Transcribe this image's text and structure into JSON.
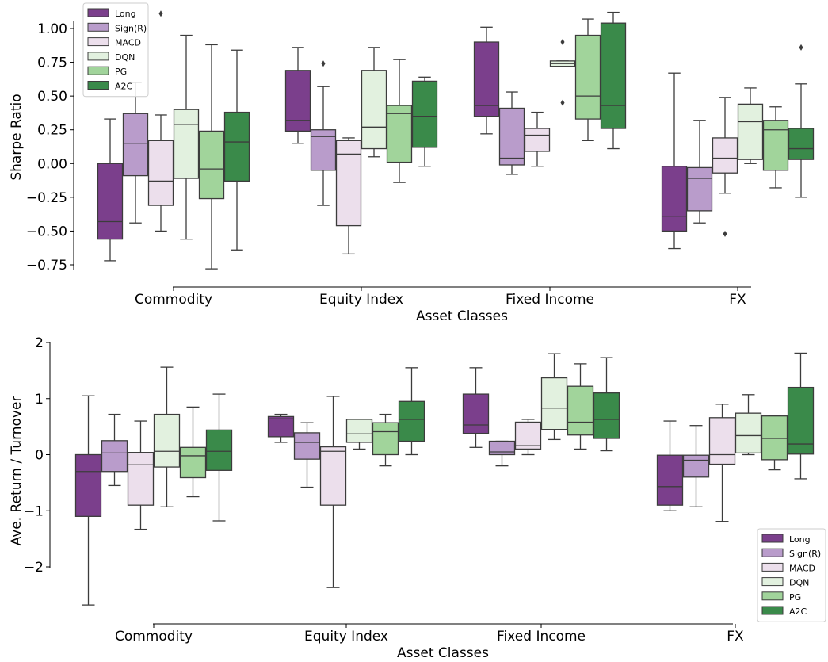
{
  "palette": {
    "Long": "#7b3f8c",
    "Sign(R)": "#b99ccb",
    "MACD": "#ecdfec",
    "DQN": "#e2f1df",
    "PG": "#a1d49b",
    "A2C": "#3a8a4a",
    "line": "#3c3c3c"
  },
  "chart_data": [
    {
      "type": "box",
      "xlabel": "Asset Classes",
      "ylabel": "Sharpe Ratio",
      "categories": [
        "Commodity",
        "Equity Index",
        "Fixed Income",
        "FX"
      ],
      "ylim": [
        -0.82,
        1.18
      ],
      "yticks": [
        -0.75,
        -0.5,
        -0.25,
        0.0,
        0.25,
        0.5,
        0.75,
        1.0
      ],
      "ytick_labels": [
        "−0.75",
        "−0.50",
        "−0.25",
        "0.00",
        "0.25",
        "0.50",
        "0.75",
        "1.00"
      ],
      "legend": [
        "Long",
        "Sign(R)",
        "MACD",
        "DQN",
        "PG",
        "A2C"
      ],
      "legend_position": "top-left",
      "series": [
        {
          "name": "Long",
          "boxes": [
            {
              "lo": -0.72,
              "q1": -0.56,
              "med": -0.43,
              "q3": 0.0,
              "hi": 0.33,
              "outliers": []
            },
            {
              "lo": 0.15,
              "q1": 0.24,
              "med": 0.32,
              "q3": 0.69,
              "hi": 0.86,
              "outliers": []
            },
            {
              "lo": 0.22,
              "q1": 0.35,
              "med": 0.43,
              "q3": 0.9,
              "hi": 1.01,
              "outliers": []
            },
            {
              "lo": -0.63,
              "q1": -0.5,
              "med": -0.39,
              "q3": -0.02,
              "hi": 0.67,
              "outliers": []
            }
          ]
        },
        {
          "name": "Sign(R)",
          "boxes": [
            {
              "lo": -0.44,
              "q1": -0.09,
              "med": 0.15,
              "q3": 0.37,
              "hi": 0.6,
              "outliers": []
            },
            {
              "lo": -0.31,
              "q1": -0.05,
              "med": 0.2,
              "q3": 0.25,
              "hi": 0.57,
              "outliers": [
                0.74
              ]
            },
            {
              "lo": -0.08,
              "q1": -0.01,
              "med": 0.04,
              "q3": 0.41,
              "hi": 0.53,
              "outliers": []
            },
            {
              "lo": -0.44,
              "q1": -0.35,
              "med": -0.11,
              "q3": -0.03,
              "hi": 0.32,
              "outliers": []
            }
          ]
        },
        {
          "name": "MACD",
          "boxes": [
            {
              "lo": -0.5,
              "q1": -0.31,
              "med": -0.13,
              "q3": 0.17,
              "hi": 0.36,
              "outliers": [
                1.11
              ]
            },
            {
              "lo": -0.67,
              "q1": -0.46,
              "med": 0.07,
              "q3": 0.17,
              "hi": 0.19,
              "outliers": []
            },
            {
              "lo": -0.02,
              "q1": 0.09,
              "med": 0.21,
              "q3": 0.26,
              "hi": 0.38,
              "outliers": []
            },
            {
              "lo": -0.22,
              "q1": -0.07,
              "med": 0.04,
              "q3": 0.19,
              "hi": 0.49,
              "outliers": [
                -0.52
              ]
            }
          ]
        },
        {
          "name": "DQN",
          "boxes": [
            {
              "lo": -0.56,
              "q1": -0.11,
              "med": 0.29,
              "q3": 0.4,
              "hi": 0.95,
              "outliers": []
            },
            {
              "lo": 0.05,
              "q1": 0.11,
              "med": 0.27,
              "q3": 0.69,
              "hi": 0.86,
              "outliers": []
            },
            {
              "lo": 0.72,
              "q1": 0.72,
              "med": 0.74,
              "q3": 0.76,
              "hi": 0.76,
              "outliers": [
                0.9,
                0.45
              ]
            },
            {
              "lo": 0.0,
              "q1": 0.03,
              "med": 0.31,
              "q3": 0.44,
              "hi": 0.56,
              "outliers": []
            }
          ]
        },
        {
          "name": "PG",
          "boxes": [
            {
              "lo": -0.78,
              "q1": -0.26,
              "med": -0.04,
              "q3": 0.24,
              "hi": 0.88,
              "outliers": []
            },
            {
              "lo": -0.14,
              "q1": 0.01,
              "med": 0.37,
              "q3": 0.43,
              "hi": 0.77,
              "outliers": []
            },
            {
              "lo": 0.17,
              "q1": 0.33,
              "med": 0.5,
              "q3": 0.95,
              "hi": 1.07,
              "outliers": []
            },
            {
              "lo": -0.18,
              "q1": -0.05,
              "med": 0.25,
              "q3": 0.32,
              "hi": 0.42,
              "outliers": []
            }
          ]
        },
        {
          "name": "A2C",
          "boxes": [
            {
              "lo": -0.64,
              "q1": -0.13,
              "med": 0.16,
              "q3": 0.38,
              "hi": 0.84,
              "outliers": []
            },
            {
              "lo": -0.02,
              "q1": 0.12,
              "med": 0.35,
              "q3": 0.61,
              "hi": 0.64,
              "outliers": []
            },
            {
              "lo": 0.11,
              "q1": 0.26,
              "med": 0.43,
              "q3": 1.04,
              "hi": 1.12,
              "outliers": []
            },
            {
              "lo": -0.25,
              "q1": 0.03,
              "med": 0.11,
              "q3": 0.26,
              "hi": 0.59,
              "outliers": [
                0.86
              ]
            }
          ]
        }
      ]
    },
    {
      "type": "box",
      "xlabel": "Asset Classes",
      "ylabel": "Ave. Return / Turnover",
      "categories": [
        "Commodity",
        "Equity Index",
        "Fixed Income",
        "FX"
      ],
      "ylim": [
        -2.8,
        2.05
      ],
      "yticks": [
        -2,
        -1,
        0,
        1,
        2
      ],
      "ytick_labels": [
        "−2",
        "−1",
        "0",
        "1",
        "2"
      ],
      "legend": [
        "Long",
        "Sign(R)",
        "MACD",
        "DQN",
        "PG",
        "A2C"
      ],
      "legend_position": "bottom-right",
      "series": [
        {
          "name": "Long",
          "boxes": [
            {
              "lo": -2.68,
              "q1": -1.1,
              "med": -0.3,
              "q3": 0.0,
              "hi": 1.05,
              "outliers": []
            },
            {
              "lo": 0.22,
              "q1": 0.32,
              "med": 0.64,
              "q3": 0.68,
              "hi": 0.72,
              "outliers": []
            },
            {
              "lo": 0.13,
              "q1": 0.38,
              "med": 0.53,
              "q3": 1.08,
              "hi": 1.55,
              "outliers": []
            },
            {
              "lo": -1.0,
              "q1": -0.9,
              "med": -0.57,
              "q3": -0.01,
              "hi": 0.6,
              "outliers": []
            }
          ]
        },
        {
          "name": "Sign(R)",
          "boxes": [
            {
              "lo": -0.55,
              "q1": -0.3,
              "med": 0.03,
              "q3": 0.25,
              "hi": 0.72,
              "outliers": []
            },
            {
              "lo": -0.58,
              "q1": -0.08,
              "med": 0.22,
              "q3": 0.39,
              "hi": 0.57,
              "outliers": []
            },
            {
              "lo": -0.2,
              "q1": 0.0,
              "med": 0.05,
              "q3": 0.24,
              "hi": 0.24,
              "outliers": []
            },
            {
              "lo": -0.93,
              "q1": -0.4,
              "med": -0.1,
              "q3": -0.01,
              "hi": 0.52,
              "outliers": []
            }
          ]
        },
        {
          "name": "MACD",
          "boxes": [
            {
              "lo": -1.33,
              "q1": -0.9,
              "med": -0.18,
              "q3": 0.04,
              "hi": 0.6,
              "outliers": []
            },
            {
              "lo": -2.37,
              "q1": -0.9,
              "med": 0.06,
              "q3": 0.14,
              "hi": 1.04,
              "outliers": []
            },
            {
              "lo": 0.0,
              "q1": 0.1,
              "med": 0.16,
              "q3": 0.58,
              "hi": 0.63,
              "outliers": []
            },
            {
              "lo": -1.19,
              "q1": -0.17,
              "med": 0.0,
              "q3": 0.66,
              "hi": 0.9,
              "outliers": []
            }
          ]
        },
        {
          "name": "DQN",
          "boxes": [
            {
              "lo": -0.93,
              "q1": -0.22,
              "med": 0.06,
              "q3": 0.72,
              "hi": 1.56,
              "outliers": []
            },
            {
              "lo": 0.1,
              "q1": 0.22,
              "med": 0.37,
              "q3": 0.63,
              "hi": 0.63,
              "outliers": []
            },
            {
              "lo": 0.27,
              "q1": 0.45,
              "med": 0.83,
              "q3": 1.37,
              "hi": 1.8,
              "outliers": []
            },
            {
              "lo": 0.0,
              "q1": 0.03,
              "med": 0.34,
              "q3": 0.74,
              "hi": 1.07,
              "outliers": []
            }
          ]
        },
        {
          "name": "PG",
          "boxes": [
            {
              "lo": -0.75,
              "q1": -0.41,
              "med": -0.02,
              "q3": 0.13,
              "hi": 0.85,
              "outliers": []
            },
            {
              "lo": -0.2,
              "q1": 0.0,
              "med": 0.41,
              "q3": 0.57,
              "hi": 0.72,
              "outliers": []
            },
            {
              "lo": 0.1,
              "q1": 0.35,
              "med": 0.58,
              "q3": 1.22,
              "hi": 1.62,
              "outliers": []
            },
            {
              "lo": -0.27,
              "q1": -0.09,
              "med": 0.29,
              "q3": 0.69,
              "hi": 0.69,
              "outliers": []
            }
          ]
        },
        {
          "name": "A2C",
          "boxes": [
            {
              "lo": -1.18,
              "q1": -0.28,
              "med": 0.06,
              "q3": 0.44,
              "hi": 1.08,
              "outliers": []
            },
            {
              "lo": 0.0,
              "q1": 0.24,
              "med": 0.63,
              "q3": 0.95,
              "hi": 1.55,
              "outliers": []
            },
            {
              "lo": 0.07,
              "q1": 0.29,
              "med": 0.63,
              "q3": 1.1,
              "hi": 1.73,
              "outliers": []
            },
            {
              "lo": -0.43,
              "q1": 0.01,
              "med": 0.19,
              "q3": 1.2,
              "hi": 1.81,
              "outliers": []
            }
          ]
        }
      ]
    }
  ]
}
